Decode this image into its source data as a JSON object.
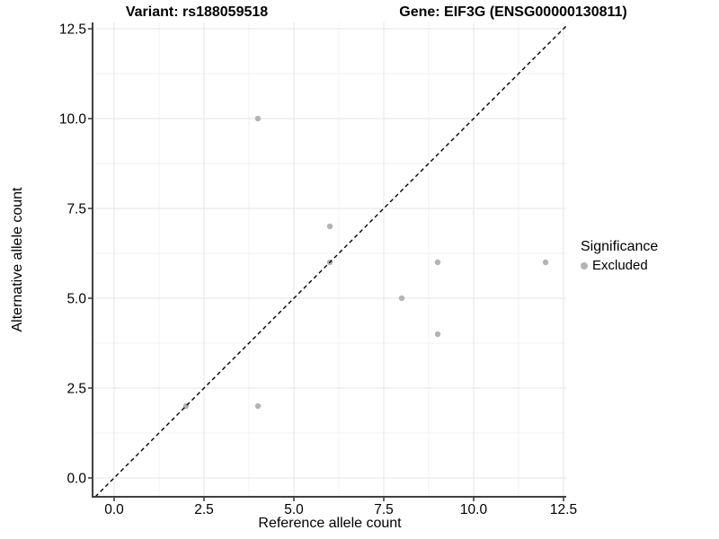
{
  "title": {
    "variant": "Variant: rs188059518",
    "gene": "Gene: EIF3G (ENSG00000130811)"
  },
  "legend": {
    "title": "Significance",
    "items": [
      {
        "label": "Excluded",
        "color": "#b4b4b4"
      }
    ]
  },
  "colors": {
    "point": "#b4b4b4",
    "grid_major": "#e4e4e4",
    "grid_minor": "#f0f0f0",
    "axis_line": "#404040",
    "tick_mark": "#333333",
    "text": "#000000",
    "background": "#ffffff",
    "reference_line": "#000000"
  },
  "chart_data": {
    "type": "scatter",
    "title": "Variant: rs188059518        Gene: EIF3G (ENSG00000130811)",
    "xlabel": "Reference allele count",
    "ylabel": "Alternative allele count",
    "xlim": [
      -0.6,
      12.575
    ],
    "ylim": [
      -0.525,
      12.675
    ],
    "x_tick_values": [
      0,
      2.5,
      5,
      7.5,
      10,
      12.5
    ],
    "x_tick_labels": [
      "0.0",
      "2.5",
      "5.0",
      "7.5",
      "10.0",
      "12.5"
    ],
    "y_tick_values": [
      0,
      2.5,
      5,
      7.5,
      10,
      12.5
    ],
    "y_tick_labels": [
      "0.0",
      "2.5",
      "5.0",
      "7.5",
      "10.0",
      "12.5"
    ],
    "x_minor_values": [
      1.25,
      3.75,
      6.25,
      8.75,
      11.25
    ],
    "y_minor_values": [
      1.25,
      3.75,
      6.25,
      8.75,
      11.25
    ],
    "grid": "major+minor",
    "legend_position": "right",
    "series": [
      {
        "name": "Excluded",
        "color": "#b4b4b4",
        "points": [
          [
            2,
            2
          ],
          [
            4,
            2
          ],
          [
            4,
            10
          ],
          [
            6,
            6
          ],
          [
            6,
            7
          ],
          [
            8,
            5
          ],
          [
            9,
            4
          ],
          [
            9,
            6
          ],
          [
            12,
            6
          ]
        ]
      }
    ],
    "reference_line": {
      "type": "identity",
      "slope": 1,
      "intercept": 0,
      "style": "dashed",
      "color": "#000000"
    }
  }
}
